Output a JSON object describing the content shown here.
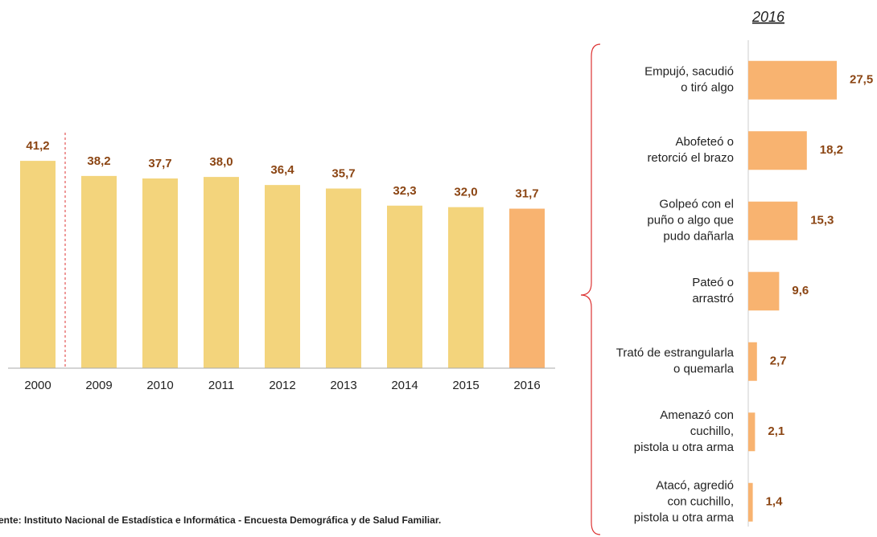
{
  "chart_data": [
    {
      "type": "bar",
      "categories": [
        "2000",
        "2009",
        "2010",
        "2011",
        "2012",
        "2013",
        "2014",
        "2015",
        "2016"
      ],
      "values": [
        41.2,
        38.2,
        37.7,
        38.0,
        36.4,
        35.7,
        32.3,
        32.0,
        31.7
      ],
      "value_labels": [
        "41,2",
        "38,2",
        "37,7",
        "38,0",
        "36,4",
        "35,7",
        "32,3",
        "32,0",
        "31,7"
      ],
      "colors": [
        "#f3d47c",
        "#f3d47c",
        "#f3d47c",
        "#f3d47c",
        "#f3d47c",
        "#f3d47c",
        "#f3d47c",
        "#f3d47c",
        "#f8b370"
      ],
      "ylim": [
        0,
        50
      ]
    },
    {
      "type": "hbar",
      "title": "2016",
      "categories": [
        [
          "Empujó, sacudió",
          "o tiró algo"
        ],
        [
          "Abofeteó o",
          "retorció el brazo"
        ],
        [
          "Golpeó con el",
          "puño o algo que",
          "pudo dañarla"
        ],
        [
          "Pateó o",
          "arrastró"
        ],
        [
          "Trató de estrangularla",
          "o quemarla"
        ],
        [
          "Amenazó con",
          "cuchillo,",
          "pistola u otra arma"
        ],
        [
          "Atacó, agredió",
          "con cuchillo,",
          "pistola u otra arma"
        ]
      ],
      "values": [
        27.5,
        18.2,
        15.3,
        9.6,
        2.7,
        2.1,
        1.4
      ],
      "value_labels": [
        "27,5",
        "18,2",
        "15,3",
        "9,6",
        "2,7",
        "2,1",
        "1,4"
      ],
      "color": "#f8b370",
      "xlim": [
        0,
        40
      ]
    }
  ],
  "source": "ente: Instituto Nacional de Estadística e Informática - Encuesta Demográfica y de Salud Familiar."
}
